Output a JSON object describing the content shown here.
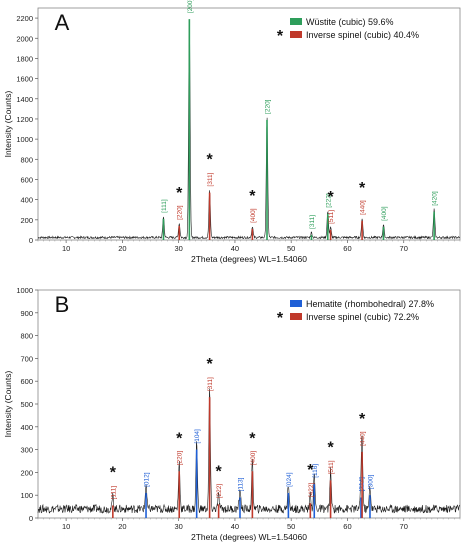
{
  "chart_data": [
    {
      "panel_label": "A",
      "type": "line",
      "xlabel": "2Theta (degrees) WL=1.54060",
      "ylabel": "Intensity (Counts)",
      "xlim": [
        5,
        80
      ],
      "ylim": [
        0,
        2300
      ],
      "x_ticks": [
        10,
        20,
        30,
        40,
        50,
        60,
        70
      ],
      "y_ticks": [
        0,
        200,
        400,
        600,
        800,
        1000,
        1200,
        1400,
        1600,
        1800,
        2000,
        2200
      ],
      "legend_position": "top-right",
      "background": 25,
      "series": [
        {
          "name": "Wüstite (cubic) 59.6%",
          "color": "#2e9e5b",
          "marked": false,
          "peaks": [
            {
              "x": 27.3,
              "y": 210,
              "hkl": "[111]"
            },
            {
              "x": 31.9,
              "y": 2190,
              "hkl": "[200]"
            },
            {
              "x": 45.7,
              "y": 1190,
              "hkl": "[220]"
            },
            {
              "x": 53.6,
              "y": 50,
              "hkl": "[311]"
            },
            {
              "x": 56.5,
              "y": 260,
              "hkl": "[222]"
            },
            {
              "x": 66.4,
              "y": 130,
              "hkl": "[400]"
            },
            {
              "x": 75.4,
              "y": 280,
              "hkl": "[420]"
            }
          ]
        },
        {
          "name": "Inverse spinel (cubic) 40.4%",
          "color": "#c0392b",
          "marked": true,
          "peaks": [
            {
              "x": 30.1,
              "y": 140,
              "hkl": "[220]"
            },
            {
              "x": 35.5,
              "y": 470,
              "hkl": "[311]"
            },
            {
              "x": 43.1,
              "y": 110,
              "hkl": "[400]"
            },
            {
              "x": 57.0,
              "y": 100,
              "hkl": "[511]"
            },
            {
              "x": 62.6,
              "y": 190,
              "hkl": "[440]"
            }
          ]
        }
      ]
    },
    {
      "panel_label": "B",
      "type": "line",
      "xlabel": "2Theta (degrees) WL=1.54060",
      "ylabel": "Intensity (Counts)",
      "xlim": [
        5,
        80
      ],
      "ylim": [
        0,
        1000
      ],
      "x_ticks": [
        10,
        20,
        30,
        40,
        50,
        60,
        70
      ],
      "y_ticks": [
        0,
        100,
        200,
        300,
        400,
        500,
        600,
        700,
        800,
        900,
        1000
      ],
      "legend_position": "top-right",
      "background": 40,
      "series": [
        {
          "name": "Hematite (rhombohedral) 27.8%",
          "color": "#1f5fd6",
          "marked": false,
          "peaks": [
            {
              "x": 24.2,
              "y": 110,
              "hkl": "[012]"
            },
            {
              "x": 33.2,
              "y": 300,
              "hkl": "[104]"
            },
            {
              "x": 40.9,
              "y": 90,
              "hkl": "[113]"
            },
            {
              "x": 49.5,
              "y": 110,
              "hkl": "[024]"
            },
            {
              "x": 54.1,
              "y": 150,
              "hkl": "[116]"
            },
            {
              "x": 62.4,
              "y": 90,
              "hkl": "[214]"
            },
            {
              "x": 64.0,
              "y": 100,
              "hkl": "[300]"
            }
          ]
        },
        {
          "name": "Inverse spinel (cubic) 72.2%",
          "color": "#c0392b",
          "marked": true,
          "peaks": [
            {
              "x": 18.3,
              "y": 55,
              "hkl": "[111]"
            },
            {
              "x": 30.1,
              "y": 205,
              "hkl": "[220]"
            },
            {
              "x": 35.5,
              "y": 530,
              "hkl": "[311]"
            },
            {
              "x": 37.1,
              "y": 60,
              "hkl": "[222]"
            },
            {
              "x": 43.1,
              "y": 205,
              "hkl": "[400]"
            },
            {
              "x": 57.0,
              "y": 165,
              "hkl": "[511]"
            },
            {
              "x": 53.4,
              "y": 65,
              "hkl": "[422]"
            },
            {
              "x": 62.6,
              "y": 290,
              "hkl": "[440]"
            }
          ]
        }
      ]
    }
  ]
}
